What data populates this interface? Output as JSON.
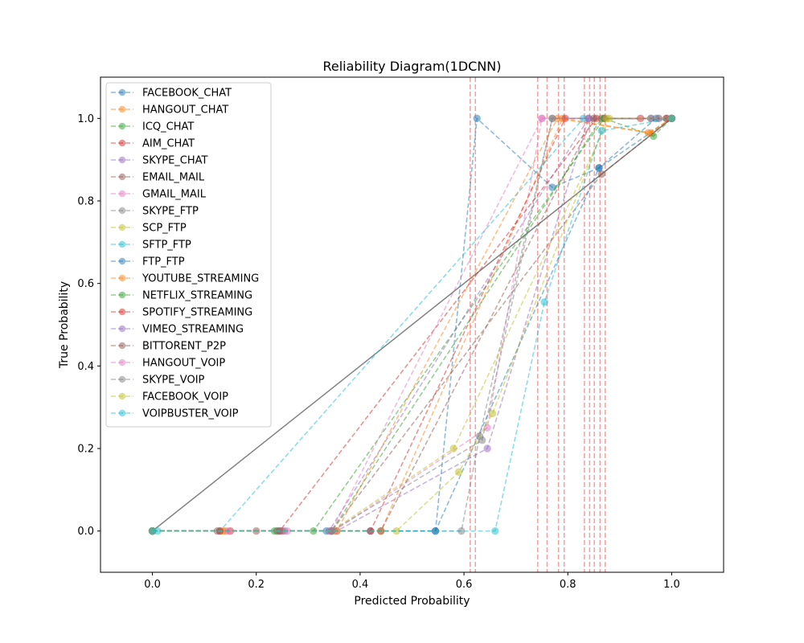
{
  "chart_data": {
    "type": "line",
    "title": "Reliability Diagram(1DCNN)",
    "xlabel": "Predicted Probability",
    "ylabel": "True Probability",
    "xlim": [
      -0.1,
      1.1
    ],
    "ylim": [
      -0.1,
      1.1
    ],
    "x_ticks": [
      0.0,
      0.2,
      0.4,
      0.6,
      0.8,
      1.0
    ],
    "y_ticks": [
      0.0,
      0.2,
      0.4,
      0.6,
      0.8,
      1.0
    ],
    "x_tick_labels": [
      "0.0",
      "0.2",
      "0.4",
      "0.6",
      "0.8",
      "1.0"
    ],
    "y_tick_labels": [
      "0.0",
      "0.2",
      "0.4",
      "0.6",
      "0.8",
      "1.0"
    ],
    "grid": false,
    "legend_position": "upper-left",
    "reference_line": {
      "x": [
        0,
        1
      ],
      "y": [
        0,
        1
      ],
      "color": "#808080"
    },
    "threshold_lines": {
      "x": [
        0.612,
        0.622,
        0.742,
        0.76,
        0.782,
        0.793,
        0.832,
        0.842,
        0.851,
        0.862,
        0.872
      ],
      "color": "#f08080"
    },
    "series": [
      {
        "name": "FACEBOOK_CHAT",
        "color": "#1f77b4",
        "x": [
          0.0,
          0.42,
          0.545,
          0.625,
          0.77,
          0.86,
          1.0
        ],
        "y": [
          0.0,
          0.0,
          0.0,
          1.0,
          0.833,
          0.88,
          1.0
        ]
      },
      {
        "name": "HANGOUT_CHAT",
        "color": "#ff7f0e",
        "x": [
          0.0,
          0.14,
          0.44,
          0.79,
          0.96,
          1.0
        ],
        "y": [
          0.0,
          0.0,
          0.0,
          1.0,
          0.965,
          1.0
        ]
      },
      {
        "name": "ICQ_CHAT",
        "color": "#2ca02c",
        "x": [
          0.0,
          0.235,
          0.31,
          0.87,
          0.965,
          1.0
        ],
        "y": [
          0.0,
          0.0,
          0.0,
          1.0,
          0.957,
          1.0
        ]
      },
      {
        "name": "AIM_CHAT",
        "color": "#d62728",
        "x": [
          0.0,
          0.15,
          0.42,
          0.795,
          0.87,
          0.94,
          1.0
        ],
        "y": [
          0.0,
          0.0,
          0.0,
          1.0,
          1.0,
          1.0,
          1.0
        ]
      },
      {
        "name": "SKYPE_CHAT",
        "color": "#9467bd",
        "x": [
          0.0,
          0.255,
          0.355,
          0.645,
          0.84,
          0.96,
          1.0
        ],
        "y": [
          0.0,
          0.0,
          0.0,
          0.2,
          1.0,
          1.0,
          1.0
        ]
      },
      {
        "name": "EMAIL_MAIL",
        "color": "#8c564b",
        "x": [
          0.0,
          0.2,
          0.345,
          0.865,
          1.0
        ],
        "y": [
          0.0,
          0.0,
          0.0,
          0.865,
          1.0
        ]
      },
      {
        "name": "GMAIL_MAIL",
        "color": "#e377c2",
        "x": [
          0.0,
          0.26,
          0.35,
          0.645,
          0.75,
          1.0
        ],
        "y": [
          0.0,
          0.0,
          0.0,
          0.25,
          1.0,
          1.0
        ]
      },
      {
        "name": "SKYPE_FTP",
        "color": "#7f7f7f",
        "x": [
          0.0,
          0.245,
          0.595,
          0.63,
          0.77,
          0.96,
          1.0
        ],
        "y": [
          0.0,
          0.0,
          0.0,
          0.23,
          1.0,
          1.0,
          1.0
        ]
      },
      {
        "name": "SCP_FTP",
        "color": "#bcbd22",
        "x": [
          0.0,
          0.25,
          0.345,
          0.58,
          0.88,
          0.975,
          1.0
        ],
        "y": [
          0.0,
          0.0,
          0.0,
          0.2,
          1.0,
          1.0,
          1.0
        ]
      },
      {
        "name": "SFTP_FTP",
        "color": "#17becf",
        "x": [
          0.0,
          0.13,
          0.83,
          1.0
        ],
        "y": [
          0.0,
          0.0,
          1.0,
          1.0
        ]
      },
      {
        "name": "FTP_FTP",
        "color": "#1f77b4",
        "x": [
          0.0,
          0.335,
          0.545,
          0.86,
          0.97,
          1.0
        ],
        "y": [
          0.0,
          0.0,
          0.0,
          0.88,
          1.0,
          1.0
        ]
      },
      {
        "name": "YOUTUBE_STREAMING",
        "color": "#ff7f0e",
        "x": [
          0.0,
          0.135,
          0.355,
          0.78,
          0.955,
          1.0
        ],
        "y": [
          0.0,
          0.0,
          0.0,
          1.0,
          0.965,
          1.0
        ]
      },
      {
        "name": "NETFLIX_STREAMING",
        "color": "#2ca02c",
        "x": [
          0.0,
          0.24,
          0.345,
          0.865,
          1.0
        ],
        "y": [
          0.0,
          0.0,
          0.0,
          1.0,
          1.0
        ]
      },
      {
        "name": "SPOTIFY_STREAMING",
        "color": "#d62728",
        "x": [
          0.0,
          0.13,
          0.245,
          0.855,
          0.99,
          1.0
        ],
        "y": [
          0.0,
          0.0,
          0.0,
          1.0,
          1.0,
          1.0
        ]
      },
      {
        "name": "VIMEO_STREAMING",
        "color": "#9467bd",
        "x": [
          0.0,
          0.25,
          0.34,
          0.84,
          0.975,
          1.0
        ],
        "y": [
          0.0,
          0.0,
          0.0,
          1.0,
          1.0,
          1.0
        ]
      },
      {
        "name": "BITTORENT_P2P",
        "color": "#8c564b",
        "x": [
          0.0,
          0.125,
          0.44,
          0.85,
          0.99,
          1.0
        ],
        "y": [
          0.0,
          0.0,
          0.0,
          1.0,
          1.0,
          1.0
        ]
      },
      {
        "name": "HANGOUT_VOIP",
        "color": "#e377c2",
        "x": [
          0.0,
          0.145,
          0.345,
          0.75,
          1.0
        ],
        "y": [
          0.0,
          0.0,
          0.0,
          1.0,
          1.0
        ]
      },
      {
        "name": "SKYPE_VOIP",
        "color": "#7f7f7f",
        "x": [
          0.0,
          0.24,
          0.345,
          0.635,
          0.77,
          1.0
        ],
        "y": [
          0.0,
          0.0,
          0.0,
          0.22,
          1.0,
          1.0
        ]
      },
      {
        "name": "FACEBOOK_VOIP",
        "color": "#bcbd22",
        "x": [
          0.0,
          0.47,
          0.59,
          0.655,
          0.875,
          1.0
        ],
        "y": [
          0.0,
          0.0,
          0.143,
          0.285,
          1.0,
          1.0
        ]
      },
      {
        "name": "VOIPBUSTER_VOIP",
        "color": "#17becf",
        "x": [
          0.0,
          0.01,
          0.66,
          0.755,
          0.865,
          1.0
        ],
        "y": [
          0.0,
          0.0,
          0.0,
          0.555,
          0.97,
          1.0
        ]
      }
    ]
  }
}
